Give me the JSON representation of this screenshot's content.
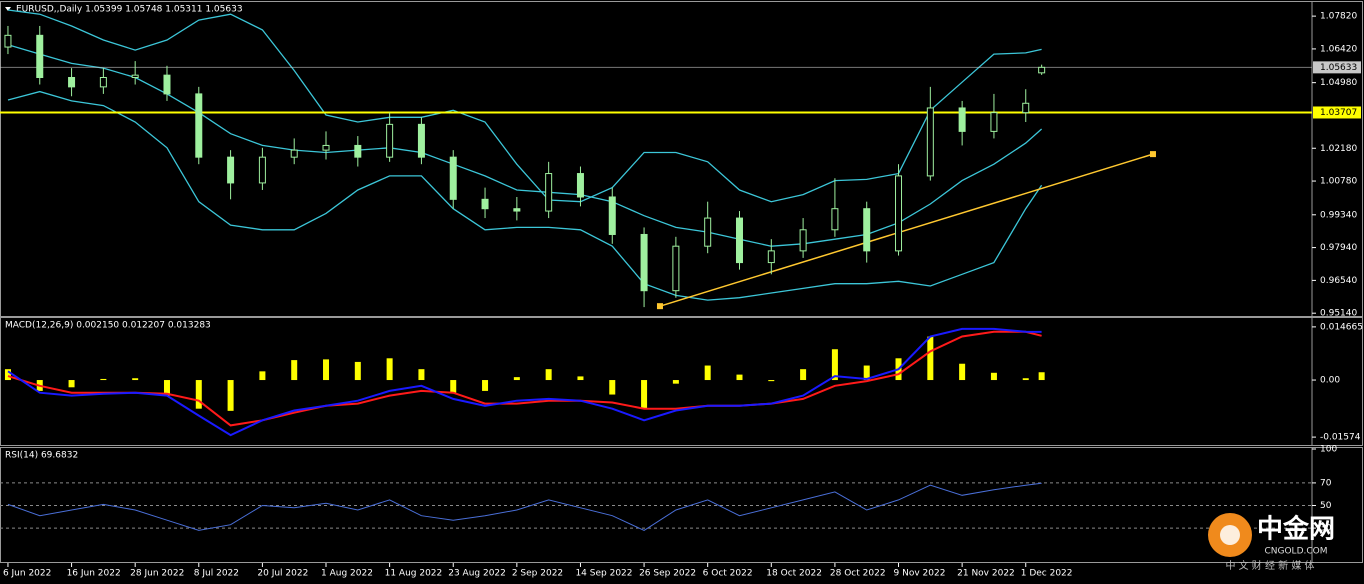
{
  "chart_data": [
    {
      "type": "candlestick",
      "title": "EURUSD,,Daily 1.05399 1.05748 1.05311 1.05633",
      "x": [
        0,
        4,
        8,
        12,
        16,
        20,
        24,
        28,
        32,
        36,
        40,
        44,
        48,
        52,
        56,
        60,
        64,
        68,
        72,
        76,
        80,
        84,
        88,
        92,
        96,
        100,
        104,
        108,
        112,
        116,
        120,
        124,
        128,
        130
      ],
      "open": [
        1.065,
        1.07,
        1.052,
        1.048,
        1.052,
        1.053,
        1.045,
        1.018,
        1.007,
        1.018,
        1.021,
        1.023,
        1.018,
        1.032,
        1.018,
        1.0,
        0.996,
        0.995,
        1.011,
        1.001,
        0.985,
        0.961,
        0.98,
        0.992,
        0.973,
        0.978,
        0.987,
        0.996,
        0.978,
        1.01,
        1.039,
        1.029,
        1.037,
        1.05399
      ],
      "high": [
        1.074,
        1.074,
        1.056,
        1.056,
        1.059,
        1.057,
        1.048,
        1.021,
        1.022,
        1.026,
        1.029,
        1.027,
        1.037,
        1.035,
        1.021,
        1.005,
        1.001,
        1.016,
        1.014,
        1.005,
        0.988,
        0.984,
        0.999,
        0.995,
        0.983,
        0.992,
        1.009,
        0.999,
        1.015,
        1.048,
        1.042,
        1.045,
        1.047,
        1.05748
      ],
      "low": [
        1.062,
        1.049,
        1.044,
        1.045,
        1.049,
        1.042,
        1.015,
        1.0,
        1.004,
        1.015,
        1.017,
        1.014,
        1.016,
        1.015,
        0.996,
        0.992,
        0.991,
        0.992,
        0.997,
        0.981,
        0.954,
        0.958,
        0.977,
        0.97,
        0.968,
        0.975,
        0.984,
        0.973,
        0.976,
        1.008,
        1.023,
        1.026,
        1.033,
        1.05311
      ],
      "close": [
        1.07,
        1.052,
        1.048,
        1.052,
        1.053,
        1.045,
        1.018,
        1.007,
        1.018,
        1.021,
        1.023,
        1.018,
        1.032,
        1.018,
        1.0,
        0.996,
        0.995,
        1.011,
        1.001,
        0.985,
        0.961,
        0.98,
        0.992,
        0.973,
        0.978,
        0.987,
        0.996,
        0.978,
        1.01,
        1.039,
        1.029,
        1.037,
        1.041,
        1.05633
      ],
      "candle_color": "#9ff09f",
      "bands": {
        "color": "#3cc6d8",
        "upper": [
          1.0808,
          1.079,
          1.074,
          1.068,
          1.0637,
          1.068,
          1.0765,
          1.079,
          1.0723,
          1.055,
          1.036,
          1.033,
          1.035,
          1.035,
          1.038,
          1.033,
          1.015,
          0.9997,
          0.999,
          1.005,
          1.02,
          1.02,
          1.016,
          1.004,
          0.999,
          1.002,
          1.008,
          1.0085,
          1.011,
          1.038,
          1.05,
          1.062,
          1.0625,
          1.064
        ],
        "middle": [
          1.066,
          1.062,
          1.058,
          1.056,
          1.052,
          1.045,
          1.037,
          1.028,
          1.023,
          1.021,
          1.02,
          1.021,
          1.022,
          1.02,
          1.015,
          1.01,
          1.004,
          1.003,
          1.002,
          0.999,
          0.993,
          0.988,
          0.986,
          0.983,
          0.98,
          0.981,
          0.983,
          0.985,
          0.99,
          0.998,
          1.008,
          1.015,
          1.024,
          1.03
        ],
        "lower": [
          1.0424,
          1.046,
          1.042,
          1.04,
          1.033,
          1.022,
          0.999,
          0.989,
          0.987,
          0.987,
          0.994,
          1.004,
          1.01,
          1.01,
          0.996,
          0.987,
          0.988,
          0.988,
          0.987,
          0.98,
          0.964,
          0.959,
          0.957,
          0.958,
          0.96,
          0.962,
          0.964,
          0.964,
          0.965,
          0.963,
          0.968,
          0.973,
          0.996,
          1.006
        ]
      },
      "levels": [
        1.03707,
        1.05633
      ],
      "level_colors": [
        "#ffff00",
        "#c8c8c8"
      ],
      "trendline": {
        "x": [
          82,
          144
        ],
        "y": [
          0.9544,
          1.0193
        ],
        "color": "#ffc830"
      },
      "xlim": [
        -1,
        164
      ],
      "ylim": [
        0.9502,
        1.0838
      ],
      "yticks": [
        {
          "value": 1.0782,
          "label": "1.07820"
        },
        {
          "value": 1.0642,
          "label": "1.06420"
        },
        {
          "value": 1.0498,
          "label": "1.04980"
        },
        {
          "value": 1.0218,
          "label": "1.02180"
        },
        {
          "value": 1.0078,
          "label": "1.00780"
        },
        {
          "value": 0.9934,
          "label": "0.99340"
        },
        {
          "value": 0.9794,
          "label": "0.97940"
        },
        {
          "value": 0.9654,
          "label": "0.96540"
        },
        {
          "value": 0.9514,
          "label": "0.95140"
        }
      ]
    },
    {
      "type": "macd",
      "title": "MACD(12,26,9) 0.002150 0.012207 0.013283",
      "x": [
        0,
        4,
        8,
        12,
        16,
        20,
        24,
        28,
        32,
        36,
        40,
        44,
        48,
        52,
        56,
        60,
        64,
        68,
        72,
        76,
        80,
        84,
        88,
        92,
        96,
        100,
        104,
        108,
        112,
        116,
        120,
        124,
        128,
        130
      ],
      "histogram": {
        "color": "#ffff00",
        "values": [
          0.003,
          -0.003,
          -0.002,
          0.0003,
          0.0005,
          -0.0043,
          -0.0079,
          -0.0085,
          0.0024,
          0.0055,
          0.0057,
          0.005,
          0.006,
          0.003,
          -0.0035,
          -0.003,
          0.0008,
          0.003,
          0.001,
          -0.004,
          -0.008,
          -0.001,
          0.004,
          0.0015,
          -0.0003,
          0.003,
          0.0085,
          0.004,
          0.006,
          0.012,
          0.0045,
          0.002,
          0.0005,
          0.00215
        ]
      },
      "macd": {
        "color": "#1a1aff",
        "values": [
          0.0024,
          -0.0035,
          -0.0043,
          -0.0038,
          -0.0035,
          -0.0043,
          -0.0098,
          -0.0152,
          -0.0111,
          -0.0084,
          -0.0071,
          -0.0057,
          -0.003,
          -0.0016,
          -0.0052,
          -0.0071,
          -0.0057,
          -0.0052,
          -0.0057,
          -0.0079,
          -0.0111,
          -0.0084,
          -0.0071,
          -0.0071,
          -0.0065,
          -0.0043,
          0.0011,
          0.0003,
          0.003,
          0.012,
          0.0141,
          0.0141,
          0.0133,
          0.013283
        ]
      },
      "signal": {
        "color": "#ff1a1a",
        "values": [
          0.0011,
          -0.0016,
          -0.0035,
          -0.0035,
          -0.0035,
          -0.0038,
          -0.0057,
          -0.0125,
          -0.0111,
          -0.009,
          -0.0071,
          -0.0065,
          -0.0043,
          -0.003,
          -0.0035,
          -0.0065,
          -0.0065,
          -0.0057,
          -0.0057,
          -0.0062,
          -0.0079,
          -0.0079,
          -0.0071,
          -0.0071,
          -0.0065,
          -0.0052,
          -0.0016,
          -0.0003,
          0.0016,
          0.0079,
          0.012,
          0.0133,
          0.0133,
          0.012207
        ]
      },
      "xlim": [
        -1,
        164
      ],
      "ylim": [
        -0.01792,
        0.01684
      ],
      "yticks": [
        0.014665,
        {
          "value": 0,
          "label": "0.00"
        },
        -0.01574
      ]
    },
    {
      "type": "line",
      "title": "RSI(14) 69.6832",
      "x": [
        0,
        4,
        8,
        12,
        16,
        20,
        24,
        28,
        32,
        36,
        40,
        44,
        48,
        52,
        56,
        60,
        64,
        68,
        72,
        76,
        80,
        84,
        88,
        92,
        96,
        100,
        104,
        108,
        112,
        116,
        120,
        124,
        128,
        130
      ],
      "values": [
        51,
        41,
        46,
        51,
        46,
        37,
        28,
        33,
        50,
        48,
        52,
        46,
        55,
        41,
        37,
        41,
        46,
        55,
        48,
        41,
        28,
        46,
        55,
        41,
        48,
        55,
        62,
        46,
        55,
        68,
        59,
        64,
        68,
        69.6832
      ],
      "color": "#4a6fd8",
      "grid": true,
      "xlim": [
        -1,
        164
      ],
      "ylim": [
        0,
        100
      ],
      "yticks": [
        100,
        70,
        50,
        30
      ],
      "xticks": [
        {
          "value": 0,
          "label": "6 Jun 2022"
        },
        {
          "value": 8,
          "label": "16 Jun 2022"
        },
        {
          "value": 16,
          "label": "28 Jun 2022"
        },
        {
          "value": 24,
          "label": "8 Jul 2022"
        },
        {
          "value": 32,
          "label": "20 Jul 2022"
        },
        {
          "value": 40,
          "label": "1 Aug 2022"
        },
        {
          "value": 48,
          "label": "11 Aug 2022"
        },
        {
          "value": 56,
          "label": "23 Aug 2022"
        },
        {
          "value": 64,
          "label": "2 Sep 2022"
        },
        {
          "value": 72,
          "label": "14 Sep 2022"
        },
        {
          "value": 80,
          "label": "26 Sep 2022"
        },
        {
          "value": 88,
          "label": "6 Oct 2022"
        },
        {
          "value": 96,
          "label": "18 Oct 2022"
        },
        {
          "value": 104,
          "label": "28 Oct 2022"
        },
        {
          "value": 112,
          "label": "9 Nov 2022"
        },
        {
          "value": 120,
          "label": "21 Nov 2022"
        },
        {
          "value": 128,
          "label": "1 Dec 2022"
        }
      ]
    }
  ],
  "watermark": {
    "brand": "中金网",
    "site": "CNGOLD.COM",
    "tagline": "中 文 财 经 新 媒 体"
  }
}
